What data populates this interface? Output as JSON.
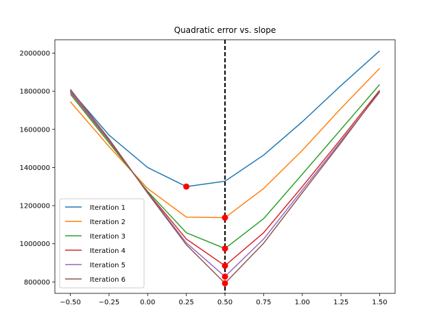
{
  "chart_data": {
    "type": "line",
    "title": "Quadratic error vs. slope",
    "xlabel": "",
    "ylabel": "",
    "xlim": [
      -0.6,
      1.6
    ],
    "ylim": [
      740000,
      2070000
    ],
    "x": [
      -0.5,
      -0.25,
      0.0,
      0.25,
      0.5,
      0.75,
      1.0,
      1.25,
      1.5
    ],
    "x_ticks": [
      -0.5,
      -0.25,
      0.0,
      0.25,
      0.5,
      0.75,
      1.0,
      1.25,
      1.5
    ],
    "x_tick_labels": [
      "−0.50",
      "−0.25",
      "0.00",
      "0.25",
      "0.50",
      "0.75",
      "1.00",
      "1.25",
      "1.50"
    ],
    "y_ticks": [
      800000,
      1000000,
      1200000,
      1400000,
      1600000,
      1800000,
      2000000
    ],
    "y_tick_labels": [
      "800000",
      "1000000",
      "1200000",
      "1400000",
      "1600000",
      "1800000",
      "2000000"
    ],
    "grid": false,
    "legend_position": "lower-left",
    "vertical_line": {
      "x": 0.5,
      "style": "dashed",
      "color": "#000000"
    },
    "series": [
      {
        "name": "Iteration 1",
        "color": "#1f77b4",
        "values": [
          1805000,
          1570000,
          1400000,
          1300000,
          1328000,
          1465000,
          1640000,
          1830000,
          2012000
        ],
        "marker": {
          "x": 0.25,
          "y": 1300000
        }
      },
      {
        "name": "Iteration 2",
        "color": "#ff7f0e",
        "values": [
          1745000,
          1510000,
          1290000,
          1140000,
          1137000,
          1290000,
          1490000,
          1710000,
          1920000
        ],
        "marker": {
          "x": 0.5,
          "y": 1137000
        }
      },
      {
        "name": "Iteration 3",
        "color": "#2ca02c",
        "values": [
          1785000,
          1530000,
          1275000,
          1058000,
          975000,
          1132000,
          1365000,
          1600000,
          1835000
        ],
        "marker": {
          "x": 0.5,
          "y": 975000
        }
      },
      {
        "name": "Iteration 4",
        "color": "#d62728",
        "values": [
          1795000,
          1540000,
          1270000,
          1025000,
          885000,
          1058000,
          1300000,
          1550000,
          1805000
        ],
        "marker": {
          "x": 0.5,
          "y": 885000
        }
      },
      {
        "name": "Iteration 5",
        "color": "#9467bd",
        "values": [
          1800000,
          1545000,
          1268000,
          1005000,
          828000,
          1025000,
          1282000,
          1538000,
          1795000
        ],
        "marker": {
          "x": 0.5,
          "y": 828000
        }
      },
      {
        "name": "Iteration 6",
        "color": "#8c564b",
        "values": [
          1810000,
          1550000,
          1265000,
          995000,
          793000,
          1003000,
          1268000,
          1530000,
          1800000
        ],
        "marker": {
          "x": 0.5,
          "y": 793000
        }
      }
    ],
    "marker_color": "#ff0000"
  }
}
